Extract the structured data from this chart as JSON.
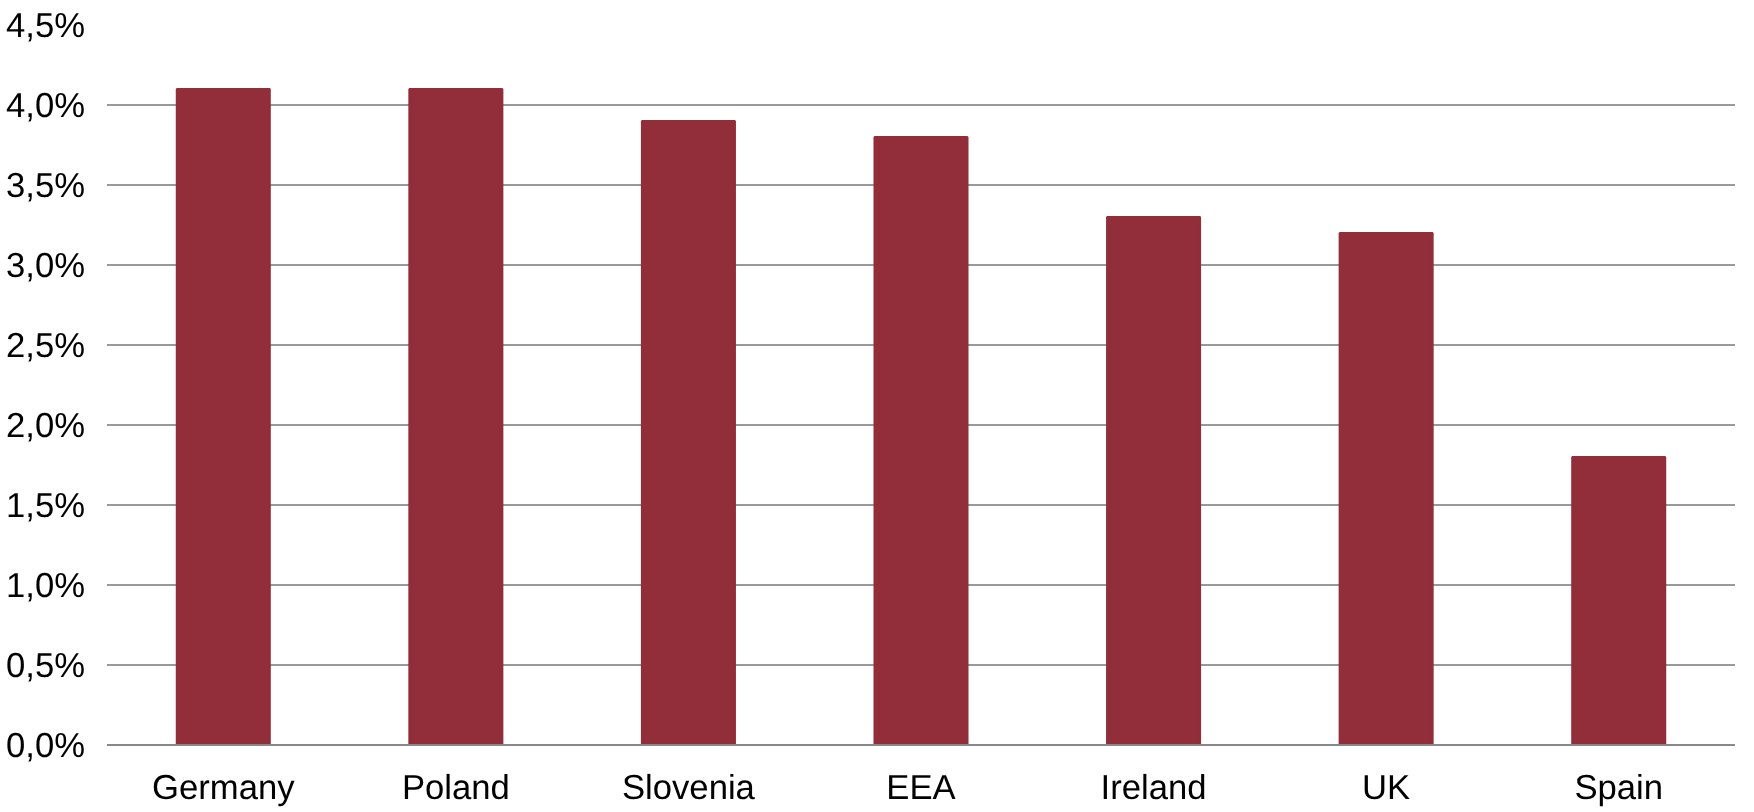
{
  "chart_data": {
    "type": "bar",
    "categories": [
      "Germany",
      "Poland",
      "Slovenia",
      "EEA",
      "Ireland",
      "UK",
      "Spain"
    ],
    "values": [
      4.1,
      4.1,
      3.9,
      3.8,
      3.3,
      3.2,
      1.8
    ],
    "color": "#922d3a",
    "ylim": [
      0,
      4.5
    ],
    "yticks": [
      {
        "value": 0,
        "label": "0,0%"
      },
      {
        "value": 0.5,
        "label": "0,5%"
      },
      {
        "value": 1,
        "label": "1,0%"
      },
      {
        "value": 1.5,
        "label": "1,5%"
      },
      {
        "value": 2,
        "label": "2,0%"
      },
      {
        "value": 2.5,
        "label": "2,5%"
      },
      {
        "value": 3,
        "label": "3,0%"
      },
      {
        "value": 3.5,
        "label": "3,5%"
      },
      {
        "value": 4,
        "label": "4,0%"
      },
      {
        "value": 4.5,
        "label": "4,5%"
      }
    ],
    "grid": "y"
  }
}
